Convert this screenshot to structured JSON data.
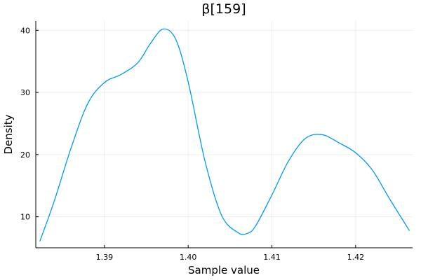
{
  "chart_data": {
    "type": "line",
    "title": "β[159]",
    "xlabel": "Sample value",
    "ylabel": "Density",
    "xlim": [
      1.3818,
      1.4268
    ],
    "ylim": [
      5.0,
      41.5
    ],
    "xticks": [
      {
        "value": 1.39,
        "label": "1.39"
      },
      {
        "value": 1.4,
        "label": "1.40"
      },
      {
        "value": 1.41,
        "label": "1.41"
      },
      {
        "value": 1.42,
        "label": "1.42"
      }
    ],
    "yticks": [
      {
        "value": 10,
        "label": "10"
      },
      {
        "value": 20,
        "label": "20"
      },
      {
        "value": 30,
        "label": "30"
      },
      {
        "value": 40,
        "label": "40"
      }
    ],
    "grid": true,
    "legend": "none",
    "colors": {
      "series": "#009af9"
    },
    "series": [
      {
        "x": [
          1.3823,
          1.384,
          1.386,
          1.388,
          1.39,
          1.392,
          1.394,
          1.3955,
          1.397,
          1.3985,
          1.4,
          1.402,
          1.404,
          1.406,
          1.407,
          1.408,
          1.41,
          1.412,
          1.414,
          1.416,
          1.418,
          1.42,
          1.422,
          1.424,
          1.4264
        ],
        "y": [
          6.1,
          12.5,
          21.0,
          28.2,
          31.6,
          32.9,
          34.8,
          37.9,
          40.2,
          38.6,
          31.7,
          19.0,
          10.2,
          7.4,
          7.3,
          8.4,
          13.5,
          19.0,
          22.6,
          23.2,
          21.9,
          20.3,
          17.5,
          13.0,
          7.8
        ]
      }
    ]
  }
}
